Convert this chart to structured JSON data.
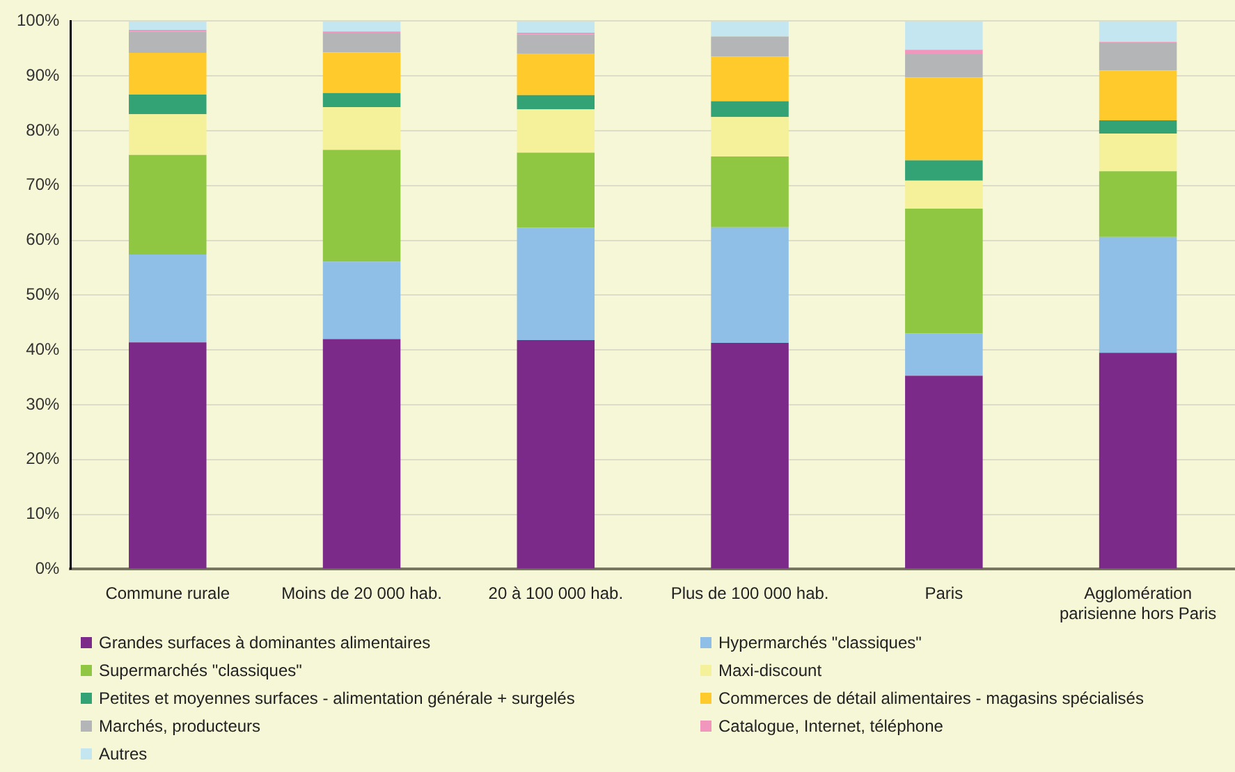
{
  "chart_data": {
    "type": "bar",
    "stacked": true,
    "categories": [
      "Commune rurale",
      "Moins de 20 000 hab.",
      "20 à 100 000 hab.",
      "Plus de 100 000 hab.",
      "Paris",
      "Agglomération parisienne hors Paris"
    ],
    "series": [
      {
        "name": "Grandes surfaces à dominantes alimentaires",
        "color": "#7b2a8a",
        "values": [
          41.4,
          42.0,
          41.8,
          41.3,
          35.3,
          39.5
        ]
      },
      {
        "name": "Hypermarchés \"classiques\"",
        "color": "#8fbfe6",
        "values": [
          16.0,
          14.1,
          20.5,
          21.1,
          7.7,
          21.1
        ]
      },
      {
        "name": "Supermarchés \"classiques\"",
        "color": "#8fc642",
        "values": [
          18.2,
          20.4,
          13.7,
          12.9,
          22.8,
          12.0
        ]
      },
      {
        "name": "Maxi-discount",
        "color": "#f5f09a",
        "values": [
          7.4,
          7.8,
          7.9,
          7.2,
          5.1,
          6.9
        ]
      },
      {
        "name": "Petites et moyennes surfaces - alimentation générale + surgelés",
        "color": "#33a375",
        "values": [
          3.6,
          2.6,
          2.6,
          2.9,
          3.7,
          2.4
        ]
      },
      {
        "name": "Commerces de détail alimentaires - magasins spécialisés",
        "color": "#ffcb2c",
        "values": [
          7.6,
          7.4,
          7.6,
          8.1,
          15.1,
          9.1
        ]
      },
      {
        "name": "Marchés, producteurs",
        "color": "#b3b5b6",
        "values": [
          3.9,
          3.6,
          3.5,
          3.7,
          4.4,
          5.0
        ]
      },
      {
        "name": "Catalogue, Internet, téléphone",
        "color": "#f197bd",
        "values": [
          0.3,
          0.2,
          0.3,
          null,
          0.7,
          0.2
        ]
      },
      {
        "name": "Autres",
        "color": "#c4e6f0",
        "values": [
          1.6,
          1.9,
          2.1,
          2.8,
          5.2,
          3.8
        ]
      }
    ],
    "ylim": [
      0,
      100
    ],
    "yticks": [
      {
        "value": 0,
        "label": "0%"
      },
      {
        "value": 10,
        "label": "10%"
      },
      {
        "value": 20,
        "label": "20%"
      },
      {
        "value": 30,
        "label": "30%"
      },
      {
        "value": 40,
        "label": "40%"
      },
      {
        "value": 50,
        "label": "50%"
      },
      {
        "value": 60,
        "label": "60%"
      },
      {
        "value": 70,
        "label": "70%"
      },
      {
        "value": 80,
        "label": "80%"
      },
      {
        "value": 90,
        "label": "90%"
      },
      {
        "value": 100,
        "label": "100%"
      }
    ],
    "grid": "y",
    "legend": "bottom"
  }
}
